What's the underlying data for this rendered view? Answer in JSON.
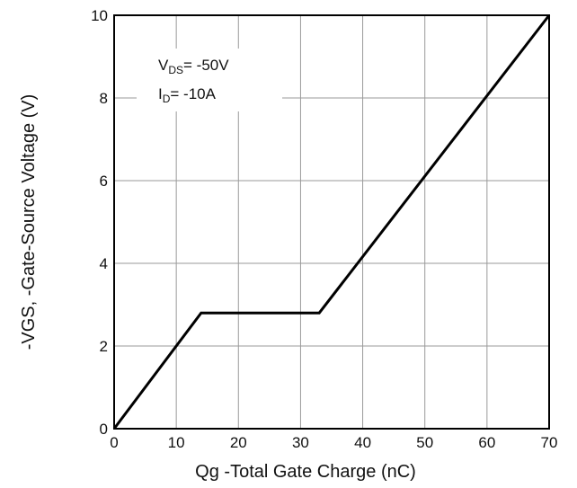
{
  "chart_data": {
    "type": "line",
    "title": "",
    "xlabel": "Qg -Total Gate Charge (nC)",
    "ylabel": "-VGS, -Gate-Source Voltage (V)",
    "xlim": [
      0,
      70
    ],
    "ylim": [
      0,
      10
    ],
    "x_ticks": [
      0,
      10,
      20,
      30,
      40,
      50,
      60,
      70
    ],
    "y_ticks": [
      0,
      2,
      4,
      6,
      8,
      10
    ],
    "grid": true,
    "legend": "none",
    "series": [
      {
        "x": [
          0,
          14,
          33,
          70
        ],
        "y": [
          0,
          2.8,
          2.8,
          10
        ],
        "color": "#000000"
      }
    ],
    "annotations": [
      {
        "main": "V",
        "sub": "DS",
        "rest": "= -50V"
      },
      {
        "main": "I",
        "sub": "D",
        "rest": "= -10A"
      }
    ]
  }
}
